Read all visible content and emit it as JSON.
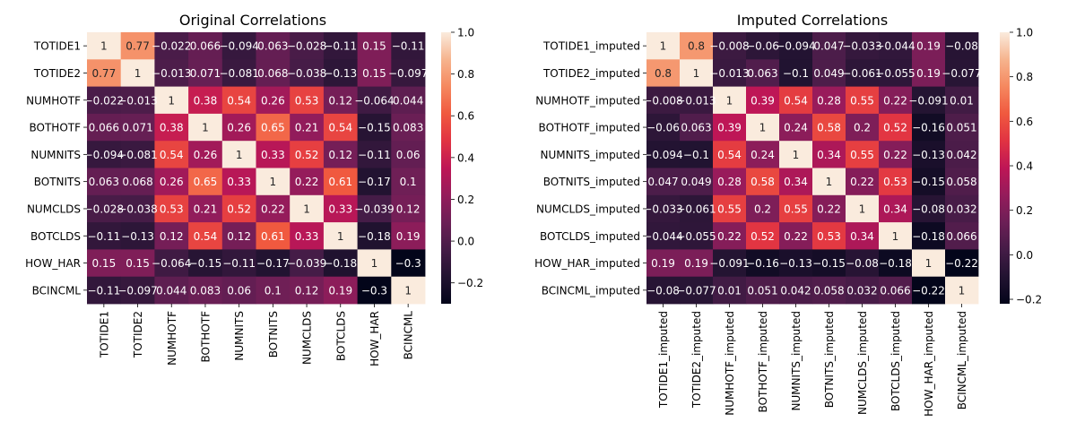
{
  "colormap": "rocket",
  "chart_data": [
    {
      "type": "heatmap",
      "title": "Original Correlations",
      "xlabel": "",
      "ylabel": "",
      "labels": [
        "TOTIDE1",
        "TOTIDE2",
        "NUMHOTF",
        "BOTHOTF",
        "NUMNITS",
        "BOTNITS",
        "NUMCLDS",
        "BOTCLDS",
        "HOW_HAR",
        "BCINCML"
      ],
      "matrix": [
        [
          1,
          0.77,
          -0.022,
          0.066,
          -0.094,
          0.063,
          -0.028,
          -0.11,
          0.15,
          -0.11
        ],
        [
          0.77,
          1,
          -0.013,
          0.071,
          -0.081,
          0.068,
          -0.038,
          -0.13,
          0.15,
          -0.097
        ],
        [
          -0.022,
          -0.013,
          1,
          0.38,
          0.54,
          0.26,
          0.53,
          0.12,
          -0.064,
          0.044
        ],
        [
          0.066,
          0.071,
          0.38,
          1,
          0.26,
          0.65,
          0.21,
          0.54,
          -0.15,
          0.083
        ],
        [
          -0.094,
          -0.081,
          0.54,
          0.26,
          1,
          0.33,
          0.52,
          0.12,
          -0.11,
          0.06
        ],
        [
          0.063,
          0.068,
          0.26,
          0.65,
          0.33,
          1,
          0.22,
          0.61,
          -0.17,
          0.1
        ],
        [
          -0.028,
          -0.038,
          0.53,
          0.21,
          0.52,
          0.22,
          1,
          0.33,
          -0.039,
          0.12
        ],
        [
          -0.11,
          -0.13,
          0.12,
          0.54,
          0.12,
          0.61,
          0.33,
          1,
          -0.18,
          0.19
        ],
        [
          0.15,
          0.15,
          -0.064,
          -0.15,
          -0.11,
          -0.17,
          -0.039,
          -0.18,
          1,
          -0.3
        ],
        [
          -0.11,
          -0.097,
          0.044,
          0.083,
          0.06,
          0.1,
          0.12,
          0.19,
          -0.3,
          1
        ]
      ],
      "vmin": -0.3,
      "vmax": 1,
      "colorbar_ticks": [
        -0.2,
        0,
        0.2,
        0.4,
        0.6,
        0.8,
        1
      ],
      "colorbar_tick_labels": [
        "−0.2",
        "0.0",
        "0.2",
        "0.4",
        "0.6",
        "0.8",
        "1.0"
      ]
    },
    {
      "type": "heatmap",
      "title": "Imputed Correlations",
      "xlabel": "",
      "ylabel": "",
      "labels": [
        "TOTIDE1_imputed",
        "TOTIDE2_imputed",
        "NUMHOTF_imputed",
        "BOTHOTF_imputed",
        "NUMNITS_imputed",
        "BOTNITS_imputed",
        "NUMCLDS_imputed",
        "BOTCLDS_imputed",
        "HOW_HAR_imputed",
        "BCINCML_imputed"
      ],
      "matrix": [
        [
          1,
          0.8,
          -0.008,
          -0.06,
          -0.094,
          0.047,
          -0.033,
          -0.044,
          0.19,
          -0.08
        ],
        [
          0.8,
          1,
          -0.013,
          0.063,
          -0.1,
          0.049,
          -0.061,
          -0.055,
          0.19,
          -0.077
        ],
        [
          -0.008,
          -0.013,
          1,
          0.39,
          0.54,
          0.28,
          0.55,
          0.22,
          -0.091,
          0.01
        ],
        [
          -0.06,
          0.063,
          0.39,
          1,
          0.24,
          0.58,
          0.2,
          0.52,
          -0.16,
          0.051
        ],
        [
          -0.094,
          -0.1,
          0.54,
          0.24,
          1,
          0.34,
          0.55,
          0.22,
          -0.13,
          0.042
        ],
        [
          0.047,
          0.049,
          0.28,
          0.58,
          0.34,
          1,
          0.22,
          0.53,
          -0.15,
          0.058
        ],
        [
          -0.033,
          -0.061,
          0.55,
          0.2,
          0.55,
          0.22,
          1,
          0.34,
          -0.08,
          0.032
        ],
        [
          -0.044,
          -0.055,
          0.22,
          0.52,
          0.22,
          0.53,
          0.34,
          1,
          -0.18,
          0.066
        ],
        [
          0.19,
          0.19,
          -0.091,
          -0.16,
          -0.13,
          -0.15,
          -0.08,
          -0.18,
          1,
          -0.22
        ],
        [
          -0.08,
          -0.077,
          0.01,
          0.051,
          0.042,
          0.058,
          0.032,
          0.066,
          -0.22,
          1
        ]
      ],
      "vmin": -0.22,
      "vmax": 1,
      "colorbar_ticks": [
        -0.2,
        0,
        0.2,
        0.4,
        0.6,
        0.8,
        1
      ],
      "colorbar_tick_labels": [
        "−0.2",
        "0.0",
        "0.2",
        "0.4",
        "0.6",
        "0.8",
        "1.0"
      ]
    }
  ]
}
